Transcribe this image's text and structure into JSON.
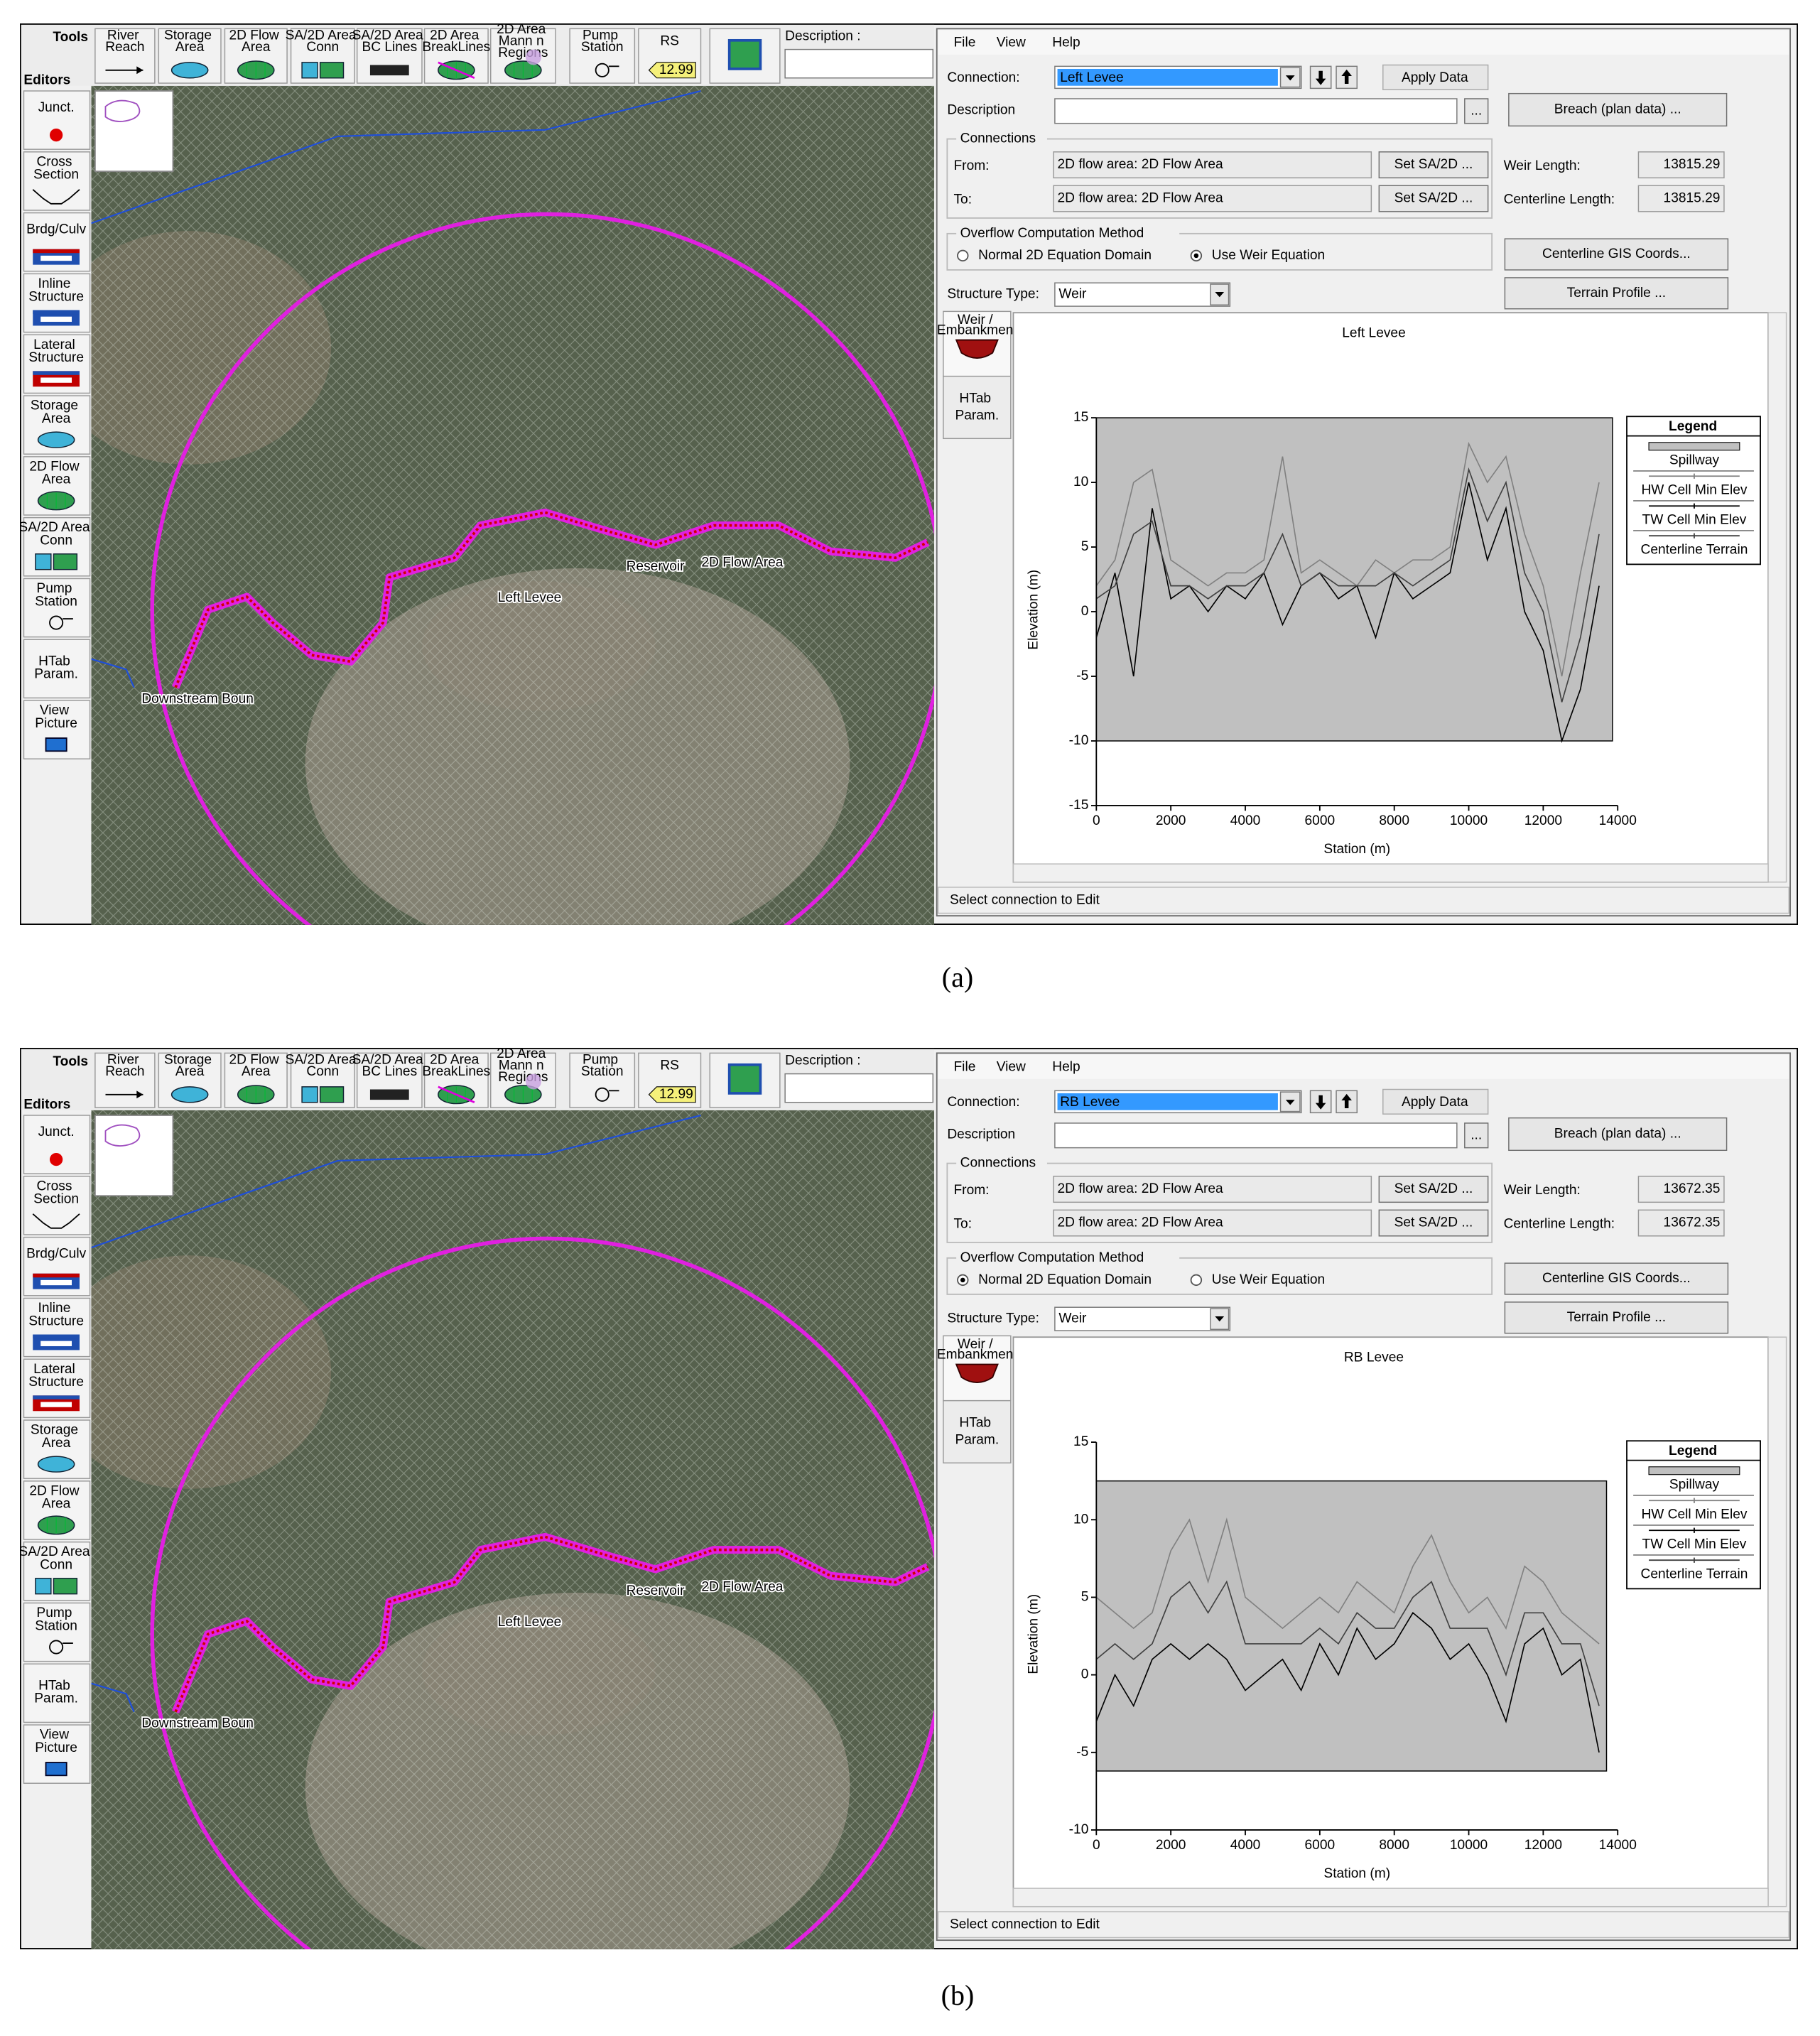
{
  "ui": {
    "tools": "Tools",
    "editors_label": "Editors",
    "toolbar": [
      "River Reach",
      "Storage Area",
      "2D Flow Area",
      "SA/2D Area Conn",
      "SA/2D Area BC Lines",
      "2D Area BreakLines",
      "2D Area Mann n Regions",
      "Pump Station",
      "RS"
    ],
    "rs_value": "12.99",
    "description_label": "Description :",
    "editors": [
      "Junct.",
      "Cross Section",
      "Brdg/Culv",
      "Inline Structure",
      "Lateral Structure",
      "Storage Area",
      "2D Flow Area",
      "SA/2D Area Conn",
      "Pump Station",
      "HTab Param.",
      "View Picture"
    ],
    "map_labels": {
      "levee": "Left Levee",
      "reservoir": "Reservoir",
      "flow_area": "2D Flow Area",
      "boundary": "Downstream Boun"
    },
    "menu": [
      "File",
      "View",
      "Help"
    ],
    "connection_label": "Connection:",
    "apply": "Apply Data",
    "description": "Description",
    "ellipsis": "...",
    "breach": "Breach (plan data) ...",
    "connections": "Connections",
    "from": "From:",
    "to": "To:",
    "flow_area": "2D flow area: 2D Flow Area",
    "set": "Set SA/2D ...",
    "weir_length": "Weir Length:",
    "centerline_length": "Centerline Length:",
    "overflow": "Overflow Computation Method",
    "options": [
      "Normal 2D Equation Domain",
      "Use Weir Equation"
    ],
    "gis": "Centerline GIS Coords...",
    "structure_type_label": "Structure Type:",
    "structure_type": "Weir",
    "terrain": "Terrain Profile ...",
    "tabs": [
      "Weir / Embankment",
      "HTab Param."
    ],
    "status": "Select connection to Edit",
    "legend_title": "Legend"
  },
  "panels": [
    {
      "caption": "(a)",
      "connection": "Left Levee",
      "weir_length": 13815.29,
      "centerline_length": 13815.29,
      "selected_option": 1,
      "plot": {
        "type": "line",
        "title": "Left Levee",
        "xlabel": "Station (m)",
        "ylabel": "Elevation (m)",
        "xlim": [
          0,
          14000
        ],
        "xticks": [
          0,
          2000,
          4000,
          6000,
          8000,
          10000,
          12000,
          14000
        ],
        "ylim": [
          -15,
          15
        ],
        "yticks": [
          -15,
          -10,
          -5,
          0,
          5,
          10,
          15
        ],
        "spillway": {
          "name": "Spillway",
          "color": "#c0c0c0",
          "station": [
            0,
            13860
          ],
          "elevation": [
            -10,
            15
          ]
        },
        "x": [
          0,
          500,
          1000,
          1500,
          2000,
          2500,
          3000,
          3500,
          4000,
          4500,
          5000,
          5500,
          6000,
          6500,
          7000,
          7500,
          8000,
          8500,
          9000,
          9500,
          10000,
          10500,
          11000,
          11500,
          12000,
          12500,
          13000,
          13500
        ],
        "series": [
          {
            "name": "HW Cell Min Elev",
            "color": "#808080",
            "values": [
              2,
              4,
              10,
              11,
              4,
              3,
              2,
              3,
              3,
              4,
              12,
              3,
              4,
              3,
              2,
              4,
              3,
              4,
              4,
              5,
              13,
              10,
              12,
              6,
              2,
              -5,
              3,
              10
            ]
          },
          {
            "name": "TW Cell Min Elev",
            "color": "#000000",
            "values": [
              -2,
              3,
              -5,
              8,
              1,
              2,
              0,
              2,
              1,
              3,
              -1,
              2,
              3,
              1,
              2,
              -2,
              3,
              1,
              2,
              3,
              10,
              4,
              8,
              0,
              -3,
              -10,
              -6,
              2
            ]
          },
          {
            "name": "Centerline Terrain",
            "color": "#404040",
            "values": [
              1,
              2,
              6,
              7,
              2,
              2,
              1,
              2,
              2,
              3,
              6,
              2,
              3,
              2,
              2,
              2,
              3,
              2,
              3,
              4,
              11,
              7,
              10,
              3,
              0,
              -7,
              -2,
              6
            ]
          }
        ]
      }
    },
    {
      "caption": "(b)",
      "connection": "RB Levee",
      "weir_length": 13672.35,
      "centerline_length": 13672.35,
      "selected_option": 0,
      "plot": {
        "type": "line",
        "title": "RB Levee",
        "xlabel": "Station (m)",
        "ylabel": "Elevation (m)",
        "xlim": [
          0,
          14000
        ],
        "xticks": [
          0,
          2000,
          4000,
          6000,
          8000,
          10000,
          12000,
          14000
        ],
        "ylim": [
          -10,
          15
        ],
        "yticks": [
          -10,
          -5,
          0,
          5,
          10,
          15
        ],
        "spillway": {
          "name": "Spillway",
          "color": "#c0c0c0",
          "station": [
            0,
            13700
          ],
          "elevation": [
            -6.2,
            12.5
          ]
        },
        "x": [
          0,
          500,
          1000,
          1500,
          2000,
          2500,
          3000,
          3500,
          4000,
          4500,
          5000,
          5500,
          6000,
          6500,
          7000,
          7500,
          8000,
          8500,
          9000,
          9500,
          10000,
          10500,
          11000,
          11500,
          12000,
          12500,
          13000,
          13500
        ],
        "series": [
          {
            "name": "HW Cell Min Elev",
            "color": "#808080",
            "values": [
              5,
              4,
              3,
              4,
              8,
              10,
              6,
              10,
              5,
              4,
              3,
              4,
              5,
              4,
              6,
              5,
              4,
              7,
              9,
              6,
              4,
              5,
              3,
              7,
              6,
              4,
              3,
              2
            ]
          },
          {
            "name": "TW Cell Min Elev",
            "color": "#000000",
            "values": [
              -3,
              0,
              -2,
              1,
              2,
              1,
              2,
              1,
              -1,
              0,
              1,
              -1,
              2,
              0,
              3,
              1,
              2,
              4,
              3,
              1,
              2,
              0,
              -3,
              2,
              3,
              0,
              1,
              -5
            ]
          },
          {
            "name": "Centerline Terrain",
            "color": "#404040",
            "values": [
              1,
              2,
              1,
              2,
              5,
              6,
              4,
              6,
              2,
              2,
              2,
              2,
              3,
              2,
              4,
              3,
              3,
              5,
              6,
              3,
              3,
              3,
              0,
              4,
              4,
              2,
              2,
              -2
            ]
          }
        ]
      }
    }
  ]
}
